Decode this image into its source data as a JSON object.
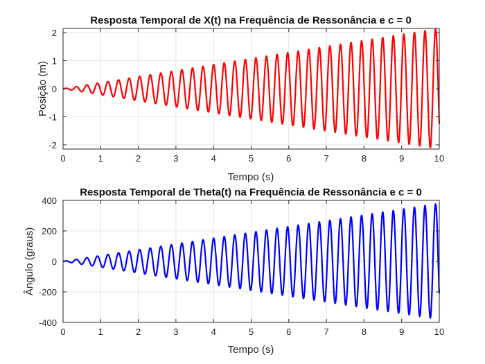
{
  "chart_data": [
    {
      "type": "line",
      "title": "Resposta Temporal de X(t) na Frequência de Ressonância e c = 0",
      "xlabel": "Tempo (s)",
      "ylabel": "Posição (m)",
      "xlim": [
        0,
        10
      ],
      "ylim": [
        -2.15,
        2.15
      ],
      "xticks": [
        0,
        1,
        2,
        3,
        4,
        5,
        6,
        7,
        8,
        9,
        10
      ],
      "yticks": [
        -2,
        -1,
        0,
        1,
        2
      ],
      "grid": true,
      "color": "#ff0000",
      "oscillation": {
        "frequency_hz": 3.56,
        "envelope_slope_per_s": 0.215,
        "end_value": -1.25
      },
      "series": [
        {
          "color": "#ff0000"
        }
      ]
    },
    {
      "type": "line",
      "title": "Resposta Temporal de Theta(t) na Frequência de Ressonância e c = 0",
      "xlabel": "Tempo (s)",
      "ylabel": "Ângulo (graus)",
      "xlim": [
        0,
        10
      ],
      "ylim": [
        -400,
        400
      ],
      "xticks": [
        0,
        1,
        2,
        3,
        4,
        5,
        6,
        7,
        8,
        9,
        10
      ],
      "yticks": [
        -400,
        -200,
        0,
        200,
        400
      ],
      "grid": true,
      "color": "#0000ff",
      "oscillation": {
        "frequency_hz": 3.56,
        "envelope_slope_per_s": 38,
        "end_value": -210
      },
      "series": [
        {
          "color": "#0000ff"
        }
      ]
    }
  ]
}
